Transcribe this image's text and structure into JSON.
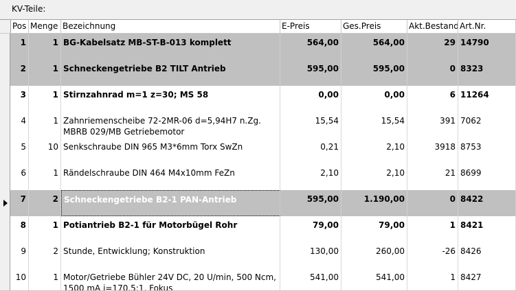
{
  "section_label": "KV-Teile:",
  "columns": {
    "pos": "Pos",
    "menge": "Menge",
    "bezeichnung": "Bezeichnung",
    "epreis": "E-Preis",
    "gespreis": "Ges.Preis",
    "bestand": "Akt.Bestand",
    "artnr": "Art.Nr."
  },
  "rows": [
    {
      "pos": "1",
      "menge": "1",
      "bezeichnung": "BG-Kabelsatz MB-ST-B-013 komplett",
      "epreis": "564,00",
      "gespreis": "564,00",
      "bestand": "29",
      "artnr": "14790"
    },
    {
      "pos": "2",
      "menge": "1",
      "bezeichnung": "Schneckengetriebe B2 TILT Antrieb",
      "epreis": "595,00",
      "gespreis": "595,00",
      "bestand": "0",
      "artnr": "8323"
    },
    {
      "pos": "3",
      "menge": "1",
      "bezeichnung": "Stirnzahnrad m=1 z=30; MS 58",
      "epreis": "0,00",
      "gespreis": "0,00",
      "bestand": "6",
      "artnr": "11264"
    },
    {
      "pos": "4",
      "menge": "1",
      "bezeichnung": "Zahnriemenscheibe 72-2MR-06 d=5,94H7 n.Zg. MBRB 029/MB Getriebemotor",
      "epreis": "15,54",
      "gespreis": "15,54",
      "bestand": "391",
      "artnr": "7062"
    },
    {
      "pos": "5",
      "menge": "10",
      "bezeichnung": "Senkschraube DIN 965 M3*6mm Torx SwZn",
      "epreis": "0,21",
      "gespreis": "2,10",
      "bestand": "3918",
      "artnr": "8753"
    },
    {
      "pos": "6",
      "menge": "1",
      "bezeichnung": "Rändelschraube DIN 464 M4x10mm FeZn",
      "epreis": "2,10",
      "gespreis": "2,10",
      "bestand": "21",
      "artnr": "8699"
    },
    {
      "pos": "7",
      "menge": "2",
      "bezeichnung": "Schneckengetriebe B2-1 PAN-Antrieb",
      "epreis": "595,00",
      "gespreis": "1.190,00",
      "bestand": "0",
      "artnr": "8422"
    },
    {
      "pos": "8",
      "menge": "1",
      "bezeichnung": "Potiantrieb B2-1 für Motorbügel Rohr",
      "epreis": "79,00",
      "gespreis": "79,00",
      "bestand": "1",
      "artnr": "8421"
    },
    {
      "pos": "9",
      "menge": "2",
      "bezeichnung": "Stunde, Entwicklung; Konstruktion",
      "epreis": "130,00",
      "gespreis": "260,00",
      "bestand": "-26",
      "artnr": "8426"
    },
    {
      "pos": "10",
      "menge": "1",
      "bezeichnung": "Motor/Getriebe Bühler 24V DC, 20 U/min, 500 Ncm, 1500 mA i=170,5:1, Fokus",
      "epreis": "541,00",
      "gespreis": "541,00",
      "bestand": "1",
      "artnr": "8427"
    }
  ],
  "colors": {
    "group_row": "#c0c0c0",
    "normal_row": "#ffffff",
    "selected_text": "#ffffff"
  },
  "current_row_icon": "record-selector-arrow-icon"
}
